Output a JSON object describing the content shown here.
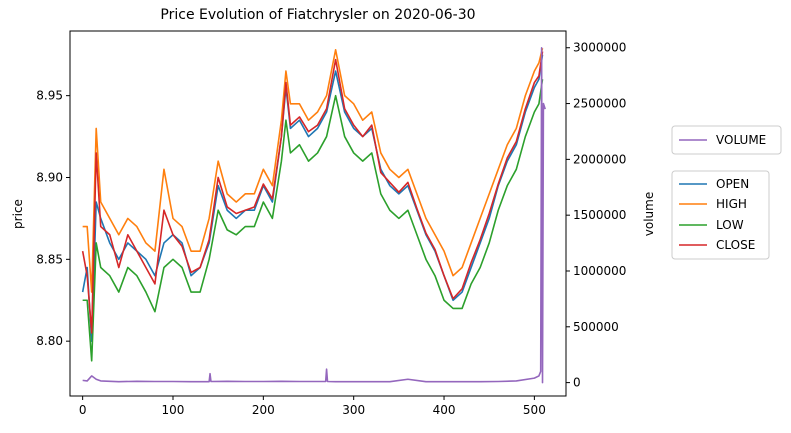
{
  "chart_data": {
    "type": "line",
    "title": "Price Evolution of Fiatchrysler on 2020-06-30",
    "xlabel": "",
    "ylabel": "price",
    "y2label": "volume",
    "xlim": [
      -14,
      535
    ],
    "ylim": [
      8.7665,
      8.9895
    ],
    "y2lim": [
      -120000,
      3150000
    ],
    "x_ticks": [
      0,
      100,
      200,
      300,
      400,
      500
    ],
    "y_ticks": [
      8.8,
      8.85,
      8.9,
      8.95
    ],
    "y_tick_labels": [
      "8.80",
      "8.85",
      "8.90",
      "8.95"
    ],
    "y2_ticks": [
      0,
      500000,
      1000000,
      1500000,
      2000000,
      2500000,
      3000000
    ],
    "y2_tick_labels": [
      "0",
      "500000",
      "1000000",
      "1500000",
      "2000000",
      "2500000",
      "3000000"
    ],
    "grid": false,
    "legend_volume": {
      "placement": "right-upper",
      "entries": [
        "VOLUME"
      ]
    },
    "legend_prices": {
      "placement": "right-middle",
      "entries": [
        "OPEN",
        "HIGH",
        "LOW",
        "CLOSE"
      ]
    },
    "series": [
      {
        "name": "OPEN",
        "color": "#1f77b4",
        "axis": "price",
        "x": [
          0,
          5,
          10,
          15,
          20,
          30,
          40,
          50,
          60,
          70,
          80,
          90,
          100,
          110,
          120,
          130,
          140,
          150,
          160,
          170,
          180,
          190,
          200,
          210,
          220,
          225,
          230,
          240,
          250,
          260,
          270,
          280,
          290,
          300,
          310,
          320,
          330,
          340,
          350,
          360,
          370,
          380,
          390,
          400,
          410,
          420,
          430,
          440,
          450,
          460,
          470,
          480,
          490,
          500,
          505,
          509
        ],
        "values": [
          8.83,
          8.845,
          8.8,
          8.885,
          8.875,
          8.86,
          8.85,
          8.86,
          8.855,
          8.85,
          8.84,
          8.86,
          8.865,
          8.86,
          8.84,
          8.845,
          8.86,
          8.895,
          8.88,
          8.875,
          8.88,
          8.88,
          8.895,
          8.885,
          8.925,
          8.955,
          8.93,
          8.935,
          8.925,
          8.93,
          8.94,
          8.965,
          8.94,
          8.93,
          8.925,
          8.93,
          8.905,
          8.895,
          8.89,
          8.895,
          8.88,
          8.865,
          8.855,
          8.84,
          8.825,
          8.83,
          8.845,
          8.86,
          8.875,
          8.895,
          8.91,
          8.92,
          8.94,
          8.955,
          8.96,
          8.975
        ]
      },
      {
        "name": "HIGH",
        "color": "#ff7f0e",
        "axis": "price",
        "x": [
          0,
          5,
          10,
          15,
          20,
          30,
          40,
          50,
          60,
          70,
          80,
          90,
          100,
          110,
          120,
          130,
          140,
          150,
          160,
          170,
          180,
          190,
          200,
          210,
          220,
          225,
          230,
          240,
          250,
          260,
          270,
          280,
          290,
          300,
          310,
          320,
          330,
          340,
          350,
          360,
          370,
          380,
          390,
          400,
          410,
          420,
          430,
          440,
          450,
          460,
          470,
          480,
          490,
          500,
          505,
          509
        ],
        "values": [
          8.87,
          8.87,
          8.83,
          8.93,
          8.885,
          8.875,
          8.865,
          8.875,
          8.87,
          8.86,
          8.855,
          8.905,
          8.875,
          8.87,
          8.855,
          8.855,
          8.875,
          8.91,
          8.89,
          8.885,
          8.89,
          8.89,
          8.905,
          8.895,
          8.935,
          8.965,
          8.945,
          8.945,
          8.935,
          8.94,
          8.95,
          8.978,
          8.95,
          8.945,
          8.935,
          8.94,
          8.915,
          8.905,
          8.9,
          8.905,
          8.89,
          8.875,
          8.865,
          8.855,
          8.84,
          8.845,
          8.86,
          8.875,
          8.89,
          8.905,
          8.92,
          8.93,
          8.95,
          8.965,
          8.97,
          8.979
        ]
      },
      {
        "name": "LOW",
        "color": "#2ca02c",
        "axis": "price",
        "x": [
          0,
          5,
          10,
          15,
          20,
          30,
          40,
          50,
          60,
          70,
          80,
          90,
          100,
          110,
          120,
          130,
          140,
          150,
          160,
          170,
          180,
          190,
          200,
          210,
          220,
          225,
          230,
          240,
          250,
          260,
          270,
          280,
          290,
          300,
          310,
          320,
          330,
          340,
          350,
          360,
          370,
          380,
          390,
          400,
          410,
          420,
          430,
          440,
          450,
          460,
          470,
          480,
          490,
          500,
          505,
          509
        ],
        "values": [
          8.825,
          8.825,
          8.788,
          8.86,
          8.845,
          8.84,
          8.83,
          8.845,
          8.84,
          8.83,
          8.818,
          8.845,
          8.85,
          8.845,
          8.83,
          8.83,
          8.85,
          8.88,
          8.868,
          8.865,
          8.87,
          8.87,
          8.885,
          8.875,
          8.91,
          8.935,
          8.915,
          8.92,
          8.91,
          8.915,
          8.925,
          8.95,
          8.925,
          8.915,
          8.91,
          8.915,
          8.89,
          8.88,
          8.875,
          8.88,
          8.865,
          8.85,
          8.84,
          8.825,
          8.82,
          8.82,
          8.835,
          8.845,
          8.86,
          8.88,
          8.895,
          8.905,
          8.925,
          8.94,
          8.945,
          8.96
        ]
      },
      {
        "name": "CLOSE",
        "color": "#d62728",
        "axis": "price",
        "x": [
          0,
          5,
          10,
          15,
          20,
          30,
          40,
          50,
          60,
          70,
          80,
          90,
          100,
          110,
          120,
          130,
          140,
          150,
          160,
          170,
          180,
          190,
          200,
          210,
          220,
          225,
          230,
          240,
          250,
          260,
          270,
          280,
          290,
          300,
          310,
          320,
          330,
          340,
          350,
          360,
          370,
          380,
          390,
          400,
          410,
          420,
          430,
          440,
          450,
          460,
          470,
          480,
          490,
          500,
          505,
          509
        ],
        "values": [
          8.855,
          8.84,
          8.805,
          8.915,
          8.87,
          8.865,
          8.845,
          8.865,
          8.855,
          8.845,
          8.835,
          8.88,
          8.865,
          8.858,
          8.842,
          8.845,
          8.862,
          8.9,
          8.882,
          8.878,
          8.88,
          8.882,
          8.896,
          8.887,
          8.925,
          8.958,
          8.932,
          8.937,
          8.928,
          8.932,
          8.942,
          8.972,
          8.942,
          8.932,
          8.925,
          8.932,
          8.903,
          8.897,
          8.891,
          8.897,
          8.881,
          8.866,
          8.856,
          8.84,
          8.826,
          8.832,
          8.848,
          8.862,
          8.878,
          8.896,
          8.912,
          8.922,
          8.942,
          8.958,
          8.962,
          8.977
        ]
      },
      {
        "name": "VOLUME",
        "color": "#9467bd",
        "axis": "volume",
        "x": [
          0,
          5,
          10,
          15,
          20,
          40,
          60,
          80,
          100,
          120,
          140,
          141,
          142,
          160,
          180,
          200,
          220,
          240,
          260,
          269,
          270,
          271,
          280,
          300,
          320,
          340,
          360,
          380,
          400,
          420,
          440,
          460,
          480,
          500,
          505,
          507,
          508,
          509,
          510,
          512
        ],
        "values": [
          20000,
          15000,
          60000,
          30000,
          15000,
          8000,
          12000,
          10000,
          10000,
          8000,
          8000,
          80000,
          10000,
          12000,
          10000,
          10000,
          12000,
          10000,
          10000,
          10000,
          120000,
          10000,
          8000,
          8000,
          8000,
          8000,
          30000,
          8000,
          8000,
          8000,
          8000,
          10000,
          15000,
          40000,
          60000,
          100000,
          3000000,
          0,
          2500000,
          2450000
        ]
      }
    ]
  }
}
